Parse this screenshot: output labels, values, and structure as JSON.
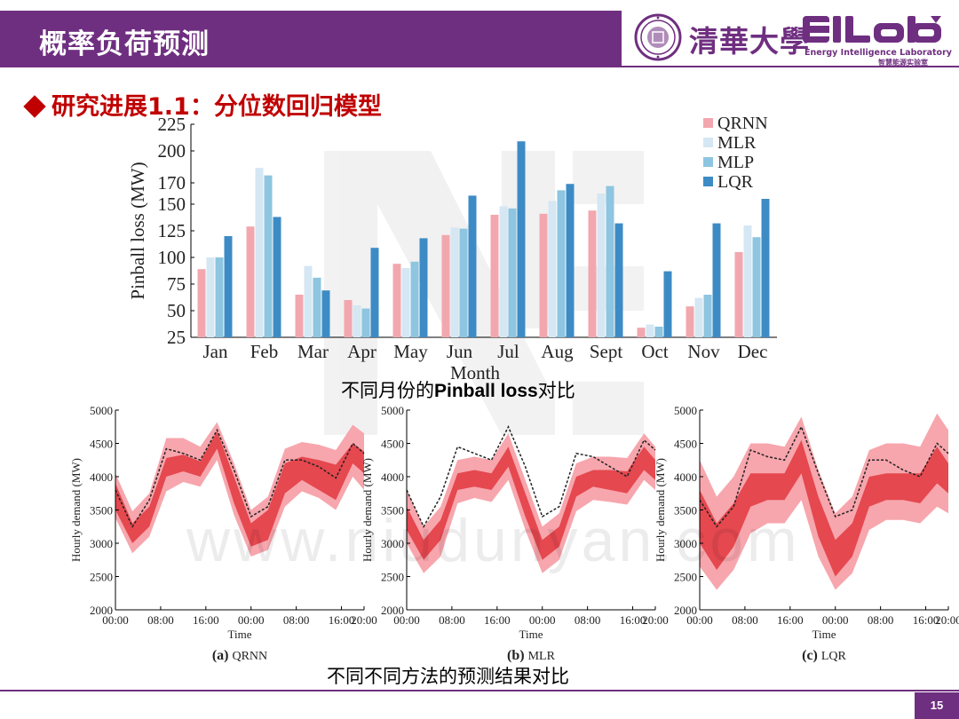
{
  "header": {
    "title": "概率负荷预测"
  },
  "logo": {
    "university": "清華大學",
    "lab_name": "Energy Intelligence Laboratory",
    "lab_name_cn": "智慧能源实验室",
    "brand_color": "#6f2f80"
  },
  "section": {
    "title": "研究进展1.1：分位数回归模型"
  },
  "watermark": "www.niudunyan.com",
  "bar_chart": {
    "caption_prefix": "不同月份的",
    "caption_bold": "Pinball loss",
    "caption_suffix": "对比"
  },
  "bands_caption": "不同不同方法的预测结果对比",
  "page_number": "15",
  "chart_data": [
    {
      "type": "bar",
      "categories": [
        "Jan",
        "Feb",
        "Mar",
        "Apr",
        "May",
        "Jun",
        "Jul",
        "Aug",
        "Sept",
        "Oct",
        "Nov",
        "Dec"
      ],
      "xlabel": "Month",
      "ylabel": "Pinball loss (MW)",
      "ylim": [
        25,
        225
      ],
      "yticks": [
        25,
        50,
        75,
        100,
        125,
        150,
        170,
        200,
        225
      ],
      "legend_position": "top-right",
      "series": [
        {
          "name": "QRNN",
          "color": "#f2a7ae",
          "values": [
            89,
            129,
            65,
            60,
            94,
            121,
            140,
            141,
            144,
            34,
            54,
            105
          ]
        },
        {
          "name": "MLR",
          "color": "#d4e7f3",
          "values": [
            100,
            184,
            92,
            55,
            90,
            128,
            148,
            153,
            160,
            37,
            62,
            130
          ]
        },
        {
          "name": "MLP",
          "color": "#8ec5e0",
          "values": [
            100,
            177,
            81,
            52,
            96,
            127,
            146,
            163,
            167,
            35,
            65,
            119
          ]
        },
        {
          "name": "LQR",
          "color": "#3d8bc5",
          "values": [
            120,
            138,
            69,
            109,
            118,
            158,
            209,
            169,
            132,
            87,
            132,
            155
          ]
        }
      ]
    },
    {
      "type": "area",
      "panel_label": "(a)",
      "method": "QRNN",
      "xlabel": "Time",
      "ylabel": "Hourly demand (MW)",
      "ylim": [
        2000,
        5000
      ],
      "yticks": [
        2000,
        2500,
        3000,
        3500,
        4000,
        4500,
        5000
      ],
      "xticks": [
        "00:00",
        "08:00",
        "16:00",
        "00:00",
        "08:00",
        "16:00",
        "20:00"
      ],
      "x_hours": [
        0,
        3,
        6,
        9,
        12,
        15,
        18,
        21,
        24,
        27,
        30,
        33,
        36,
        39,
        42,
        44
      ],
      "actual": [
        3800,
        3250,
        3650,
        4420,
        4350,
        4250,
        4700,
        4100,
        3400,
        3550,
        4250,
        4250,
        4150,
        3980,
        4500,
        4350
      ],
      "inner_low": [
        3500,
        3000,
        3250,
        4000,
        4080,
        4000,
        4420,
        3600,
        2950,
        3050,
        3750,
        3950,
        3800,
        3650,
        4200,
        4050
      ],
      "inner_high": [
        3900,
        3300,
        3550,
        4280,
        4330,
        4230,
        4680,
        4000,
        3300,
        3500,
        4200,
        4300,
        4250,
        4180,
        4500,
        4380
      ],
      "outer_low": [
        3380,
        2850,
        3100,
        3780,
        3920,
        3850,
        4250,
        3420,
        2800,
        2900,
        3550,
        3780,
        3680,
        3500,
        4000,
        3800
      ],
      "outer_high": [
        4050,
        3480,
        3750,
        4580,
        4580,
        4450,
        4820,
        4200,
        3500,
        3700,
        4420,
        4520,
        4480,
        4400,
        4780,
        4650
      ]
    },
    {
      "type": "area",
      "panel_label": "(b)",
      "method": "MLR",
      "xlabel": "Time",
      "ylabel": "Hourly demand (MW)",
      "ylim": [
        2000,
        5000
      ],
      "yticks": [
        2000,
        2500,
        3000,
        3500,
        4000,
        4500,
        5000
      ],
      "xticks": [
        "00:00",
        "08:00",
        "16:00",
        "00:00",
        "08:00",
        "16:00",
        "20:00"
      ],
      "x_hours": [
        0,
        3,
        6,
        9,
        12,
        15,
        18,
        21,
        24,
        27,
        30,
        33,
        36,
        39,
        42,
        44
      ],
      "actual": [
        3800,
        3250,
        3700,
        4450,
        4350,
        4250,
        4750,
        4150,
        3400,
        3550,
        4350,
        4300,
        4150,
        4000,
        4550,
        4400
      ],
      "inner_low": [
        3200,
        2750,
        3050,
        3800,
        3850,
        3800,
        4150,
        3400,
        2750,
        2950,
        3700,
        3850,
        3800,
        3750,
        4100,
        3950
      ],
      "inner_high": [
        3550,
        3050,
        3350,
        4050,
        4100,
        4050,
        4450,
        3750,
        3050,
        3250,
        4000,
        4100,
        4100,
        4080,
        4450,
        4250
      ],
      "outer_low": [
        3000,
        2550,
        2800,
        3600,
        3680,
        3620,
        3950,
        3200,
        2550,
        2750,
        3480,
        3650,
        3620,
        3580,
        3950,
        3800
      ],
      "outer_high": [
        3800,
        3250,
        3550,
        4250,
        4300,
        4250,
        4650,
        3950,
        3250,
        3450,
        4200,
        4300,
        4300,
        4280,
        4650,
        4450
      ]
    },
    {
      "type": "area",
      "panel_label": "(c)",
      "method": "LQR",
      "xlabel": "Time",
      "ylabel": "Hourly demand (MW)",
      "ylim": [
        2000,
        5000
      ],
      "yticks": [
        2000,
        2500,
        3000,
        3500,
        4000,
        4500,
        5000
      ],
      "xticks": [
        "00:00",
        "08:00",
        "16:00",
        "00:00",
        "08:00",
        "16:00",
        "20:00"
      ],
      "x_hours": [
        0,
        3,
        6,
        9,
        12,
        15,
        18,
        21,
        24,
        27,
        30,
        33,
        36,
        39,
        42,
        44
      ],
      "actual": [
        3650,
        3250,
        3550,
        4400,
        4300,
        4250,
        4750,
        4050,
        3400,
        3500,
        4250,
        4250,
        4100,
        4000,
        4500,
        4350
      ],
      "inner_low": [
        3000,
        2600,
        2950,
        3550,
        3650,
        3650,
        4050,
        3100,
        2500,
        2800,
        3550,
        3650,
        3650,
        3600,
        3900,
        3750
      ],
      "inner_high": [
        3800,
        3300,
        3600,
        4050,
        4050,
        4050,
        4550,
        3700,
        3050,
        3300,
        4000,
        4050,
        4050,
        4050,
        4450,
        4200
      ],
      "outer_low": [
        2650,
        2300,
        2600,
        3150,
        3300,
        3300,
        3650,
        2800,
        2300,
        2550,
        3200,
        3350,
        3350,
        3300,
        3550,
        3450
      ],
      "outer_high": [
        4250,
        3700,
        4000,
        4500,
        4500,
        4450,
        4900,
        4100,
        3450,
        3700,
        4400,
        4500,
        4500,
        4450,
        4950,
        4700
      ]
    }
  ]
}
